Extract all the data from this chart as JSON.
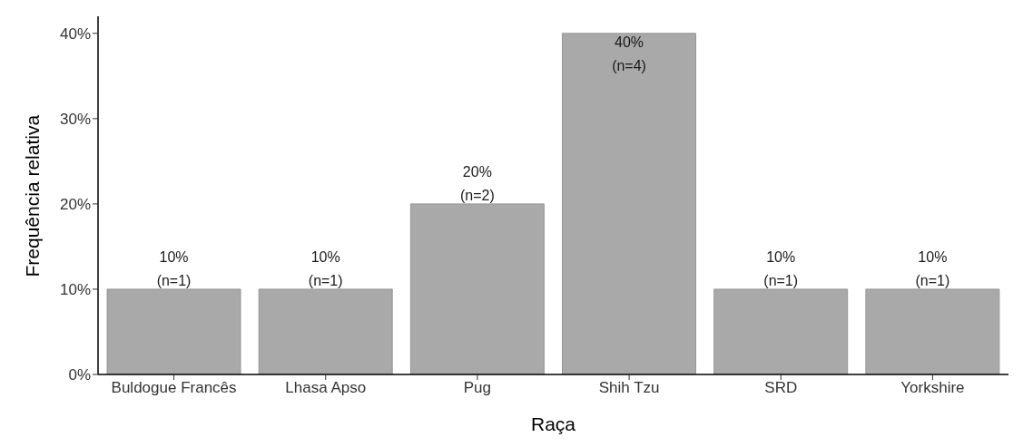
{
  "chart_data": {
    "type": "bar",
    "xlabel": "Raça",
    "ylabel": "Frequência relativa",
    "categories": [
      "Buldogue Francês",
      "Lhasa Apso",
      "Pug",
      "Shih Tzu",
      "SRD",
      "Yorkshire"
    ],
    "values": [
      10,
      10,
      20,
      40,
      10,
      10
    ],
    "value_labels": [
      "10%\n(n=1)",
      "10%\n(n=1)",
      "20%\n(n=2)",
      "40%\n(n=4)",
      "10%\n(n=1)",
      "10%\n(n=1)"
    ],
    "color": "#a9a9a9",
    "ylim": [
      0,
      42
    ],
    "yticks": [
      {
        "value": 0,
        "label": "0%"
      },
      {
        "value": 10,
        "label": "10%"
      },
      {
        "value": 20,
        "label": "20%"
      },
      {
        "value": 30,
        "label": "30%"
      },
      {
        "value": 40,
        "label": "40%"
      }
    ],
    "grid": false,
    "legend": false
  }
}
